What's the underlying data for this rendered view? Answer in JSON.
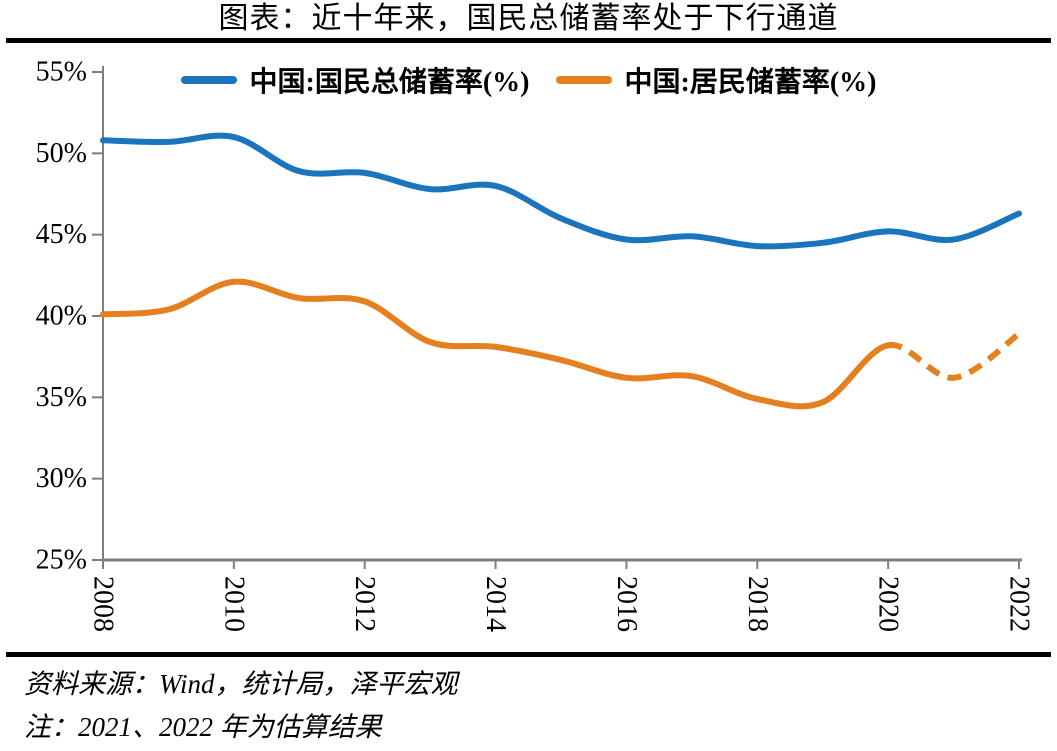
{
  "chart_data": {
    "type": "line",
    "title": "图表：近十年来，国民总储蓄率处于下行通道",
    "x": [
      2008,
      2009,
      2010,
      2011,
      2012,
      2013,
      2014,
      2015,
      2016,
      2017,
      2018,
      2019,
      2020,
      2021,
      2022
    ],
    "series": [
      {
        "name": "中国:国民总储蓄率(%)",
        "color": "#1B75BC",
        "line_style": "solid",
        "values": [
          50.8,
          50.7,
          51.0,
          48.9,
          48.8,
          47.8,
          48.0,
          46.0,
          44.7,
          44.9,
          44.3,
          44.5,
          45.2,
          44.7,
          46.3
        ]
      },
      {
        "name": "中国:居民储蓄率(%)",
        "color": "#E5801E",
        "line_style": "solid-then-dashed",
        "dashed_from_x": 2020,
        "values": [
          40.1,
          40.4,
          42.1,
          41.1,
          40.9,
          38.4,
          38.1,
          37.3,
          36.2,
          36.3,
          34.9,
          34.7,
          38.2,
          36.2,
          38.9
        ]
      }
    ],
    "xticks": [
      "2008",
      "2010",
      "2012",
      "2014",
      "2016",
      "2018",
      "2020",
      "2022"
    ],
    "yticks": [
      "55%",
      "50%",
      "45%",
      "40%",
      "35%",
      "30%",
      "25%"
    ],
    "xlim": [
      2008,
      2022
    ],
    "ylim": [
      25,
      55
    ],
    "grid": false,
    "legend_position": "top",
    "axis_color": "#7F7F7F"
  },
  "footer": {
    "source": "资料来源：Wind，统计局，泽平宏观",
    "note": "注：2021、2022 年为估算结果"
  }
}
